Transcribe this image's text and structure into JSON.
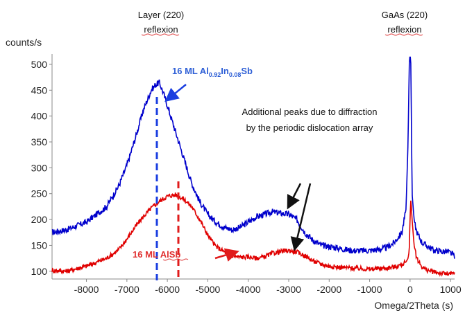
{
  "chart_data": {
    "type": "line",
    "title": "",
    "ylabel": "counts/s",
    "xlabel": "Omega/2Theta (s)",
    "xlim": [
      -8850,
      1100
    ],
    "ylim": [
      85,
      520
    ],
    "xticks": [
      -8000,
      -7000,
      -6000,
      -5000,
      -4000,
      -3000,
      -2000,
      -1000,
      0,
      1000
    ],
    "yticks": [
      100,
      150,
      200,
      250,
      300,
      350,
      400,
      450,
      500
    ],
    "grid": false,
    "annotations": {
      "layer_title": "Layer (220)",
      "layer_sub": "reflexion",
      "gaas_title": "GaAs (220)",
      "gaas_sub": "reflexion",
      "additional_line1": "Additional peaks due to diffraction",
      "additional_line2": "by the periodic dislocation array",
      "blue_label_main": "16 ML Al",
      "blue_sub1": "0.92",
      "blue_mid": "In",
      "blue_sub2": "0.08",
      "blue_end": "Sb",
      "red_label": "16 ML AlSb"
    },
    "series": [
      {
        "color": "#0000cc",
        "x": [
          -8850,
          -8500,
          -8000,
          -7500,
          -7200,
          -7000,
          -6800,
          -6600,
          -6400,
          -6300,
          -6200,
          -6100,
          -6000,
          -5800,
          -5600,
          -5400,
          -5200,
          -5000,
          -4800,
          -4600,
          -4400,
          -4200,
          -4000,
          -3800,
          -3600,
          -3400,
          -3200,
          -3000,
          -2800,
          -2600,
          -2400,
          -2200,
          -2000,
          -1800,
          -1600,
          -1400,
          -1200,
          -1000,
          -800,
          -600,
          -400,
          -200,
          -100,
          -50,
          -20,
          0,
          20,
          50,
          100,
          150,
          200,
          300,
          400,
          500,
          600,
          700,
          800,
          900,
          1000,
          1100
        ],
        "y": [
          175,
          180,
          195,
          225,
          265,
          305,
          355,
          410,
          450,
          460,
          465,
          445,
          420,
          370,
          320,
          270,
          235,
          210,
          195,
          185,
          180,
          185,
          195,
          205,
          210,
          215,
          212,
          210,
          200,
          175,
          160,
          150,
          148,
          145,
          142,
          140,
          140,
          140,
          142,
          145,
          155,
          175,
          220,
          350,
          500,
          520,
          500,
          250,
          200,
          180,
          170,
          155,
          150,
          145,
          140,
          140,
          138,
          138,
          135,
          130
        ]
      },
      {
        "color": "#e00000",
        "x": [
          -8850,
          -8500,
          -8000,
          -7500,
          -7200,
          -7000,
          -6800,
          -6600,
          -6400,
          -6200,
          -6000,
          -5800,
          -5600,
          -5400,
          -5200,
          -5000,
          -4800,
          -4600,
          -4400,
          -4200,
          -4000,
          -3800,
          -3600,
          -3400,
          -3200,
          -3000,
          -2800,
          -2600,
          -2400,
          -2200,
          -2000,
          -1800,
          -1600,
          -1400,
          -1200,
          -1000,
          -800,
          -600,
          -400,
          -200,
          -100,
          -50,
          -20,
          0,
          20,
          50,
          100,
          150,
          200,
          300,
          400,
          500,
          600,
          700,
          800,
          900,
          1000,
          1100
        ],
        "y": [
          102,
          100,
          110,
          125,
          142,
          162,
          185,
          205,
          222,
          235,
          245,
          248,
          240,
          225,
          200,
          170,
          148,
          138,
          130,
          127,
          128,
          125,
          128,
          135,
          138,
          140,
          137,
          130,
          120,
          114,
          110,
          108,
          107,
          106,
          105,
          104,
          105,
          106,
          108,
          113,
          118,
          125,
          140,
          205,
          240,
          200,
          150,
          130,
          120,
          108,
          103,
          100,
          98,
          97,
          96,
          95,
          95,
          95
        ]
      }
    ]
  }
}
